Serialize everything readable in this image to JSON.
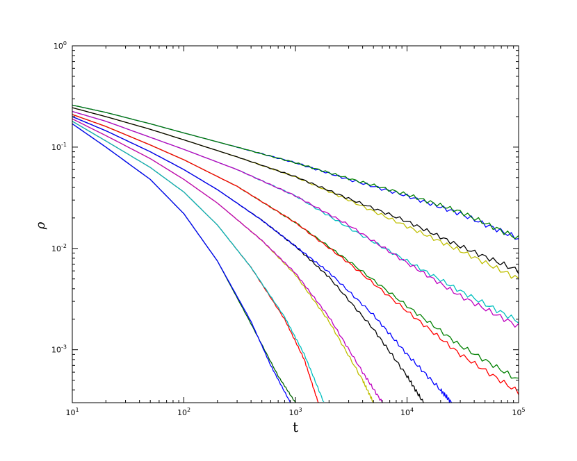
{
  "chart_data": {
    "type": "line",
    "title": "",
    "xlabel": "t",
    "ylabel": "ρ",
    "xscale": "log",
    "yscale": "log",
    "xlim": [
      10,
      100000
    ],
    "ylim": [
      0.0003,
      1
    ],
    "grid": false,
    "legend": "none",
    "x_ticks": [
      {
        "base": "10",
        "exp": "1",
        "value": 10
      },
      {
        "base": "10",
        "exp": "2",
        "value": 100
      },
      {
        "base": "10",
        "exp": "3",
        "value": 1000
      },
      {
        "base": "10",
        "exp": "4",
        "value": 10000
      },
      {
        "base": "10",
        "exp": "5",
        "value": 100000
      }
    ],
    "y_ticks": [
      {
        "base": "10",
        "exp": "0",
        "value": 1
      },
      {
        "base": "10",
        "exp": "-1",
        "value": 0.1
      },
      {
        "base": "10",
        "exp": "-2",
        "value": 0.01
      },
      {
        "base": "10",
        "exp": "-3",
        "value": 0.001
      }
    ],
    "series": [
      {
        "color": "#006400",
        "x": [
          10,
          20,
          50,
          100,
          200,
          400,
          700,
          1000
        ],
        "y": [
          0.17,
          0.1,
          0.048,
          0.022,
          0.0075,
          0.0018,
          0.00055,
          0.0003
        ]
      },
      {
        "color": "#0000ff",
        "x": [
          10,
          20,
          50,
          100,
          200,
          400,
          600,
          900
        ],
        "y": [
          0.17,
          0.1,
          0.048,
          0.022,
          0.0075,
          0.0019,
          0.0007,
          0.0003
        ]
      },
      {
        "color": "#ff0000",
        "x": [
          10,
          20,
          50,
          100,
          200,
          400,
          800,
          1200,
          1600
        ],
        "y": [
          0.18,
          0.115,
          0.063,
          0.036,
          0.017,
          0.0065,
          0.002,
          0.0008,
          0.0003
        ]
      },
      {
        "color": "#00bfbf",
        "x": [
          10,
          20,
          50,
          100,
          200,
          400,
          800,
          1200,
          1800
        ],
        "y": [
          0.18,
          0.115,
          0.063,
          0.036,
          0.017,
          0.0065,
          0.0021,
          0.0009,
          0.0003
        ]
      },
      {
        "color": "#bfbf00",
        "x": [
          10,
          20,
          50,
          100,
          200,
          500,
          1000,
          2000,
          4000,
          5000
        ],
        "y": [
          0.19,
          0.13,
          0.077,
          0.048,
          0.028,
          0.012,
          0.0055,
          0.0019,
          0.0005,
          0.0003
        ]
      },
      {
        "color": "#bf00bf",
        "x": [
          10,
          20,
          50,
          100,
          200,
          500,
          1000,
          2000,
          4000,
          6000
        ],
        "y": [
          0.19,
          0.13,
          0.077,
          0.048,
          0.028,
          0.012,
          0.0057,
          0.0021,
          0.0006,
          0.0003
        ]
      },
      {
        "color": "#000000",
        "x": [
          10,
          20,
          50,
          100,
          200,
          500,
          1000,
          2000,
          5000,
          10000,
          14000
        ],
        "y": [
          0.2,
          0.145,
          0.09,
          0.06,
          0.038,
          0.019,
          0.0105,
          0.0052,
          0.0016,
          0.00055,
          0.0003
        ]
      },
      {
        "color": "#0000ff",
        "x": [
          10,
          20,
          50,
          100,
          200,
          500,
          1000,
          2000,
          5000,
          10000,
          20000,
          25000
        ],
        "y": [
          0.2,
          0.145,
          0.09,
          0.06,
          0.038,
          0.019,
          0.0105,
          0.0058,
          0.0022,
          0.0009,
          0.0004,
          0.0003
        ]
      },
      {
        "color": "#008000",
        "x": [
          10,
          20,
          50,
          100,
          300,
          1000,
          3000,
          10000,
          30000,
          100000
        ],
        "y": [
          0.21,
          0.16,
          0.105,
          0.075,
          0.041,
          0.018,
          0.0075,
          0.0027,
          0.0011,
          0.0005
        ]
      },
      {
        "color": "#ff0000",
        "x": [
          10,
          20,
          50,
          100,
          300,
          1000,
          3000,
          10000,
          30000,
          100000
        ],
        "y": [
          0.21,
          0.16,
          0.105,
          0.075,
          0.041,
          0.018,
          0.0072,
          0.0024,
          0.0009,
          0.00038
        ]
      },
      {
        "color": "#00bfbf",
        "x": [
          10,
          20,
          50,
          100,
          300,
          1000,
          3000,
          10000,
          30000,
          100000
        ],
        "y": [
          0.225,
          0.18,
          0.125,
          0.095,
          0.06,
          0.033,
          0.016,
          0.0075,
          0.0038,
          0.0019
        ]
      },
      {
        "color": "#bf00bf",
        "x": [
          10,
          20,
          50,
          100,
          300,
          1000,
          3000,
          10000,
          30000,
          100000
        ],
        "y": [
          0.225,
          0.18,
          0.125,
          0.095,
          0.06,
          0.033,
          0.017,
          0.0072,
          0.0034,
          0.0017
        ]
      },
      {
        "color": "#bfbf00",
        "x": [
          10,
          20,
          50,
          100,
          300,
          1000,
          3000,
          10000,
          30000,
          100000
        ],
        "y": [
          0.245,
          0.2,
          0.15,
          0.118,
          0.08,
          0.051,
          0.03,
          0.0165,
          0.0095,
          0.005
        ]
      },
      {
        "color": "#000000",
        "x": [
          10,
          20,
          50,
          100,
          300,
          1000,
          3000,
          10000,
          30000,
          100000
        ],
        "y": [
          0.245,
          0.2,
          0.15,
          0.118,
          0.08,
          0.051,
          0.031,
          0.0185,
          0.0105,
          0.006
        ]
      },
      {
        "color": "#0000ff",
        "x": [
          10,
          20,
          50,
          100,
          300,
          1000,
          3000,
          10000,
          30000,
          100000
        ],
        "y": [
          0.26,
          0.22,
          0.17,
          0.138,
          0.1,
          0.07,
          0.048,
          0.033,
          0.022,
          0.0125
        ]
      },
      {
        "color": "#008000",
        "x": [
          10,
          20,
          50,
          100,
          300,
          1000,
          3000,
          10000,
          30000,
          100000
        ],
        "y": [
          0.26,
          0.22,
          0.17,
          0.138,
          0.1,
          0.07,
          0.049,
          0.034,
          0.023,
          0.0125
        ]
      }
    ]
  }
}
